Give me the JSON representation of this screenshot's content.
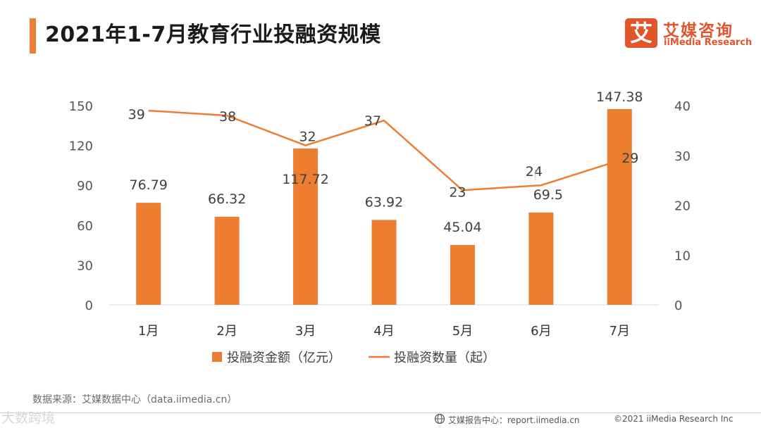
{
  "header": {
    "title": "2021年1-7月教育行业投融资规模"
  },
  "logo": {
    "mark": "艾",
    "name_cn": "艾媒咨询",
    "name_en": "iiMedia Research"
  },
  "colors": {
    "accent": "#ee7d3a",
    "bar": "#ed7d31",
    "line": "#ed7d31"
  },
  "chart_data": {
    "type": "bar",
    "categories": [
      "1月",
      "2月",
      "3月",
      "4月",
      "5月",
      "6月",
      "7月"
    ],
    "series": [
      {
        "name": "投融资金额（亿元）",
        "type": "bar",
        "axis": "left",
        "values": [
          76.79,
          66.32,
          117.72,
          63.92,
          45.04,
          69.5,
          147.38
        ]
      },
      {
        "name": "投融资数量（起）",
        "type": "line",
        "axis": "right",
        "values": [
          39,
          38,
          32,
          37,
          23,
          24,
          29
        ]
      }
    ],
    "y_left": {
      "ticks": [
        0,
        30,
        60,
        90,
        120,
        150
      ],
      "range": [
        0,
        150
      ]
    },
    "y_right": {
      "ticks": [
        0,
        10,
        20,
        30,
        40
      ],
      "range": [
        0,
        40
      ]
    },
    "legend_position": "bottom",
    "grid": false
  },
  "footer": {
    "source": "数据来源：艾媒数据中心（data.iimedia.cn）",
    "watermark": "大数跨境",
    "report": "艾媒报告中心：report.iimedia.cn",
    "copyright": "©2021  iiMedia Research  Inc"
  }
}
